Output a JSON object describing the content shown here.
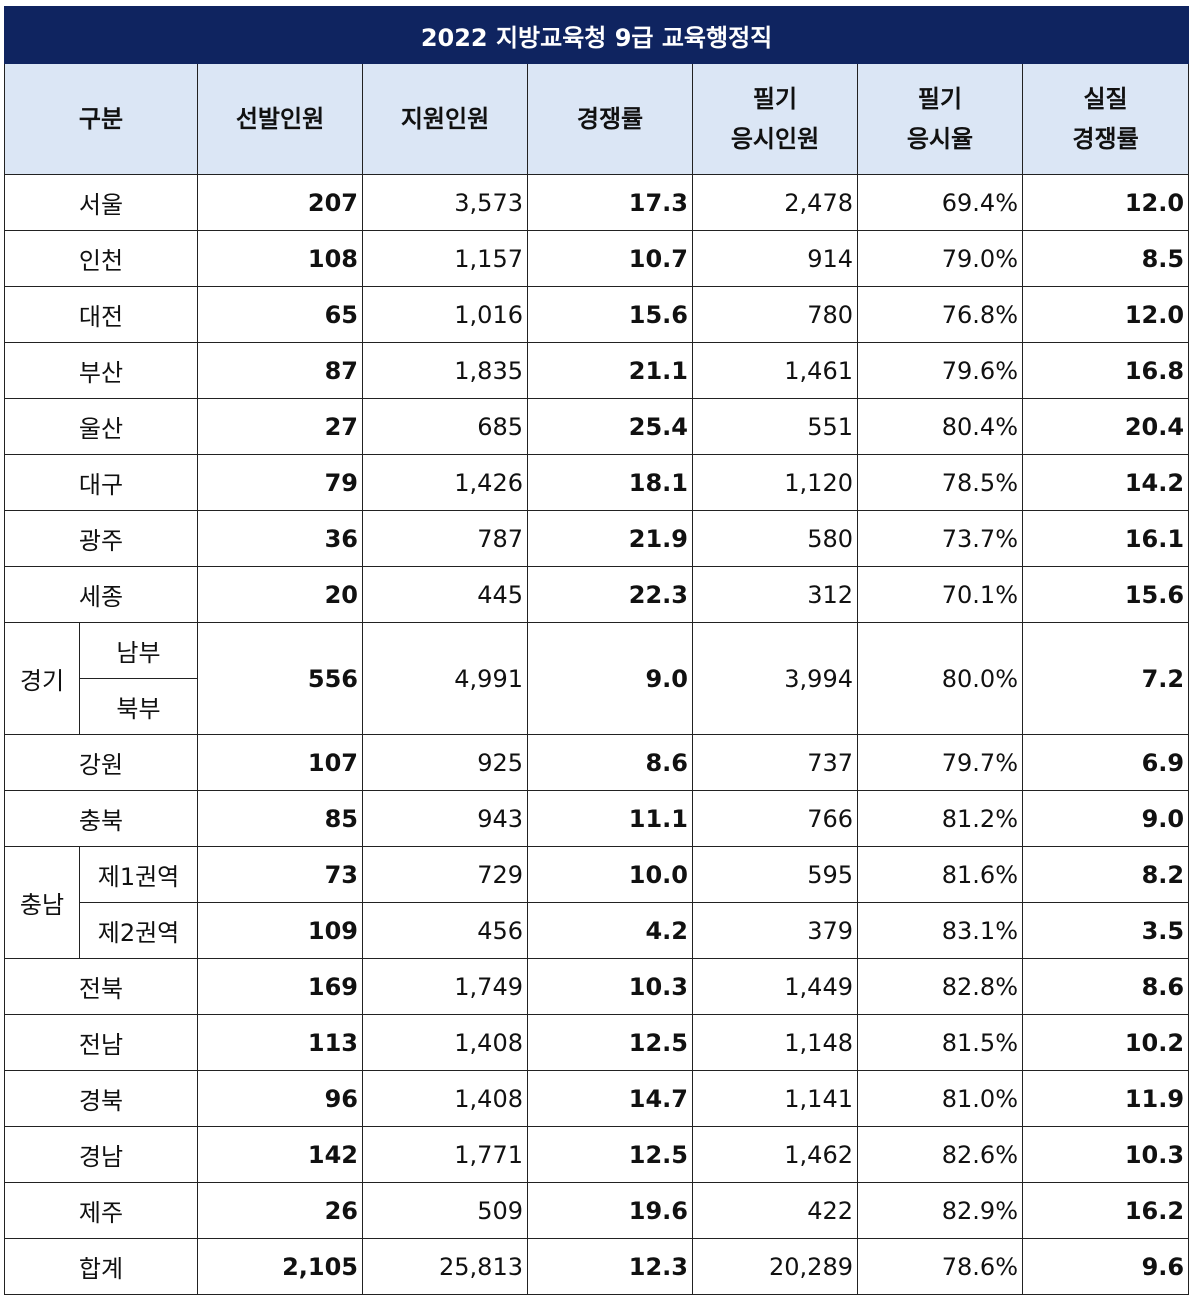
{
  "title": "2022 지방교육청 9급  교육행정직",
  "headers": {
    "category": "구분",
    "selected": "선발인원",
    "applicants": "지원인원",
    "competition": "경쟁률",
    "written_takers_l1": "필기",
    "written_takers_l2": "응시인원",
    "written_rate_l1": "필기",
    "written_rate_l2": "응시율",
    "real_comp_l1": "실질",
    "real_comp_l2": "경쟁률"
  },
  "rows_top": [
    {
      "name": "서울",
      "selected": "207",
      "applicants": "3,573",
      "competition": "17.3",
      "takers": "2,478",
      "rate": "69.4%",
      "real": "12.0"
    },
    {
      "name": "인천",
      "selected": "108",
      "applicants": "1,157",
      "competition": "10.7",
      "takers": "914",
      "rate": "79.0%",
      "real": "8.5"
    },
    {
      "name": "대전",
      "selected": "65",
      "applicants": "1,016",
      "competition": "15.6",
      "takers": "780",
      "rate": "76.8%",
      "real": "12.0"
    },
    {
      "name": "부산",
      "selected": "87",
      "applicants": "1,835",
      "competition": "21.1",
      "takers": "1,461",
      "rate": "79.6%",
      "real": "16.8"
    },
    {
      "name": "울산",
      "selected": "27",
      "applicants": "685",
      "competition": "25.4",
      "takers": "551",
      "rate": "80.4%",
      "real": "20.4"
    },
    {
      "name": "대구",
      "selected": "79",
      "applicants": "1,426",
      "competition": "18.1",
      "takers": "1,120",
      "rate": "78.5%",
      "real": "14.2"
    },
    {
      "name": "광주",
      "selected": "36",
      "applicants": "787",
      "competition": "21.9",
      "takers": "580",
      "rate": "73.7%",
      "real": "16.1"
    },
    {
      "name": "세종",
      "selected": "20",
      "applicants": "445",
      "competition": "22.3",
      "takers": "312",
      "rate": "70.1%",
      "real": "15.6"
    }
  ],
  "gyeonggi": {
    "group": "경기",
    "sub1": "남부",
    "sub2": "북부",
    "selected": "556",
    "applicants": "4,991",
    "competition": "9.0",
    "takers": "3,994",
    "rate": "80.0%",
    "real": "7.2"
  },
  "rows_mid": [
    {
      "name": "강원",
      "selected": "107",
      "applicants": "925",
      "competition": "8.6",
      "takers": "737",
      "rate": "79.7%",
      "real": "6.9"
    },
    {
      "name": "충북",
      "selected": "85",
      "applicants": "943",
      "competition": "11.1",
      "takers": "766",
      "rate": "81.2%",
      "real": "9.0"
    }
  ],
  "chungnam": {
    "group": "충남",
    "rows": [
      {
        "name": "제1권역",
        "selected": "73",
        "applicants": "729",
        "competition": "10.0",
        "takers": "595",
        "rate": "81.6%",
        "real": "8.2"
      },
      {
        "name": "제2권역",
        "selected": "109",
        "applicants": "456",
        "competition": "4.2",
        "takers": "379",
        "rate": "83.1%",
        "real": "3.5"
      }
    ]
  },
  "rows_bottom": [
    {
      "name": "전북",
      "selected": "169",
      "applicants": "1,749",
      "competition": "10.3",
      "takers": "1,449",
      "rate": "82.8%",
      "real": "8.6"
    },
    {
      "name": "전남",
      "selected": "113",
      "applicants": "1,408",
      "competition": "12.5",
      "takers": "1,148",
      "rate": "81.5%",
      "real": "10.2"
    },
    {
      "name": "경북",
      "selected": "96",
      "applicants": "1,408",
      "competition": "14.7",
      "takers": "1,141",
      "rate": "81.0%",
      "real": "11.9"
    },
    {
      "name": "경남",
      "selected": "142",
      "applicants": "1,771",
      "competition": "12.5",
      "takers": "1,462",
      "rate": "82.6%",
      "real": "10.3"
    },
    {
      "name": "제주",
      "selected": "26",
      "applicants": "509",
      "competition": "19.6",
      "takers": "422",
      "rate": "82.9%",
      "real": "16.2"
    },
    {
      "name": "합계",
      "selected": "2,105",
      "applicants": "25,813",
      "competition": "12.3",
      "takers": "20,289",
      "rate": "78.6%",
      "real": "9.6"
    }
  ]
}
